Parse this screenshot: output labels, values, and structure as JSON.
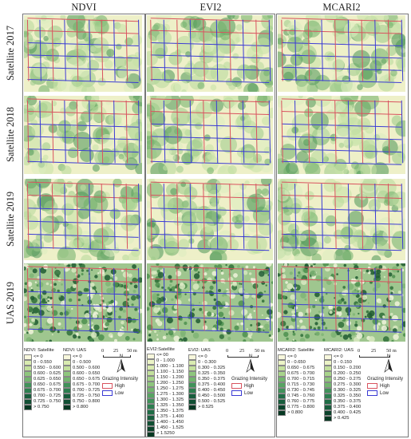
{
  "columns": [
    "NDVI",
    "EVI2",
    "MCARI2"
  ],
  "rows": [
    "Satellite 2017",
    "Satellite 2018",
    "Satellite 2019",
    "UAS 2019"
  ],
  "legends": {
    "ndvi": {
      "satellite_title": "NDVI: Satellite",
      "satellite_items": [
        "<= 0",
        "0 - 0.550",
        "0.550 - 0.600",
        "0.600 - 0.625",
        "0.625 - 0.650",
        "0.650 - 0.675",
        "0.675 - 0.700",
        "0.700 - 0.725",
        "0.725 - 0.750",
        "> 0.750"
      ],
      "uas_title": "NDVI: UAS",
      "uas_items": [
        "<= 0",
        "0 - 0.500",
        "0.500 - 0.600",
        "0.600 - 0.650",
        "0.650 - 0.675",
        "0.675 - 0.700",
        "0.700 - 0.725",
        "0.725 - 0.750",
        "0.750 - 0.800",
        "> 0.800"
      ]
    },
    "evi2": {
      "satellite_title": "EVI2:Satellite",
      "satellite_items": [
        "<= 00",
        "0 - 1.000",
        "1.000 - 1.100",
        "1.100 - 1.150",
        "1.150 - 1.200",
        "1.200 - 1.250",
        "1.250 - 1.275",
        "1.275 - 1.300",
        "1.300 - 1.325",
        "1.325 - 1.350",
        "1.350 - 1.375",
        "1.375 - 1.400",
        "1.400 - 1.450",
        "1.450 - 1.525",
        "> 1.5250"
      ],
      "uas_title": "EVI2: UAS",
      "uas_items": [
        "<= 0",
        "0 - 0.300",
        "0.300 - 0.325",
        "0.325 - 0.350",
        "0.350 - 0.375",
        "0.375 - 0.400",
        "0.400 - 0.450",
        "0.450 - 0.500",
        "0.500 - 0.525",
        "> 0.525"
      ]
    },
    "mcari2": {
      "satellite_title": "MCARI2: Satellite",
      "satellite_items": [
        "<= 0",
        "0 - 0.650",
        "0.650 - 0.675",
        "0.675 - 0.700",
        "0.700 - 0.715",
        "0.715 - 0.730",
        "0.730 - 0.745",
        "0.745 - 0.760",
        "0.760 - 0.775",
        "0.775 - 0.800",
        "> 0.800"
      ],
      "uas_title": "MCARI2: UAS",
      "uas_items": [
        "<= 0",
        "0 - 0.150",
        "0.150 - 0.200",
        "0.200 - 0.250",
        "0.250 - 0.275",
        "0.275 - 0.300",
        "0.300 - 0.325",
        "0.325 - 0.350",
        "0.350 - 0.375",
        "0.375 - 0.400",
        "0.400 - 0.425",
        "> 0.425"
      ]
    }
  },
  "scale_bar": {
    "zero": "0",
    "mid": "25",
    "end": "50 m"
  },
  "north_label": "N",
  "grazing": {
    "title": "Grazing Intensity",
    "high": "High",
    "low": "Low",
    "high_color": "#d9535f",
    "low_color": "#3b3bd4"
  },
  "ramp_colors": [
    "#fbfbe3",
    "#ecf4c6",
    "#d9ebb0",
    "#c3e09c",
    "#a8d48b",
    "#8ec67d",
    "#72b56e",
    "#58a463",
    "#40925a",
    "#2c7e4f",
    "#1f6c45",
    "#175d3c",
    "#104f33",
    "#0b432b",
    "#063822"
  ],
  "ramp_colors_first": "#f7f7dc"
}
